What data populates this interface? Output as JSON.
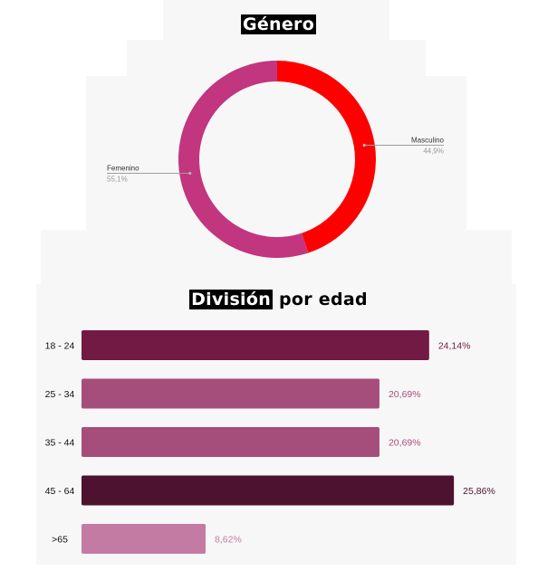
{
  "gender_title": "Género",
  "age_title_highlight": "División",
  "age_title_rest": " por edad",
  "colors": {
    "masculino": "#ff0000",
    "femenino": "#c2357f",
    "bar_18_24": "#721a44",
    "bar_25_34": "#a64e7b",
    "bar_35_44": "#a64e7b",
    "bar_45_64": "#4d122f",
    "bar_65": "#c47ba3"
  },
  "chart_data": [
    {
      "type": "pie",
      "title": "Género",
      "donut": true,
      "labels": [
        "Masculino",
        "Femenino"
      ],
      "values": [
        44.9,
        55.1
      ],
      "value_labels": [
        "44,9%",
        "55,1%"
      ]
    },
    {
      "type": "bar",
      "orientation": "horizontal",
      "title": "División por edad",
      "categories": [
        "18 - 24",
        "25 - 34",
        "35 - 44",
        "45 - 64",
        ">65"
      ],
      "values": [
        24.14,
        20.69,
        20.69,
        25.86,
        8.62
      ],
      "value_labels": [
        "24,14%",
        "20,69%",
        "20,69%",
        "25,86%",
        "8,62%"
      ],
      "xlim": [
        0,
        26.7
      ]
    }
  ]
}
